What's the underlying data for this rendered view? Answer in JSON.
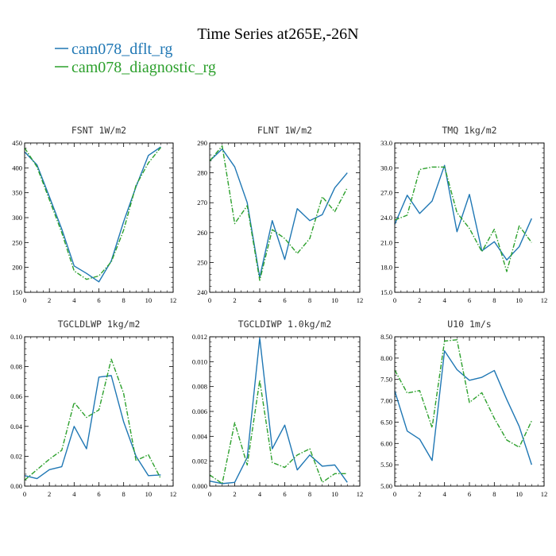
{
  "figure": {
    "title": "Time Series at265E,-26N",
    "legend": [
      {
        "name": "cam078_dflt_rg",
        "color": "#1f77b4",
        "dash": "solid"
      },
      {
        "name": "cam078_diagnostic_rg",
        "color": "#2ca02c",
        "dash": "dashdot"
      }
    ]
  },
  "chart_data": [
    {
      "type": "line",
      "title": "FSNT  1W/m2",
      "x": [
        0,
        1,
        2,
        3,
        4,
        5,
        6,
        7,
        8,
        9,
        10,
        11
      ],
      "xlim": [
        0,
        12
      ],
      "xticks": [
        0,
        2,
        4,
        6,
        8,
        10,
        12
      ],
      "ylim": [
        150,
        450
      ],
      "yticks": [
        150,
        200,
        250,
        300,
        350,
        400,
        450
      ],
      "yfmt": 0,
      "series": [
        {
          "name": "cam078_dflt_rg",
          "values": [
            432,
            406,
            342,
            277,
            203,
            188,
            171,
            213,
            292,
            362,
            425,
            442
          ]
        },
        {
          "name": "cam078_diagnostic_rg",
          "values": [
            440,
            402,
            336,
            270,
            193,
            176,
            183,
            211,
            275,
            365,
            410,
            441
          ]
        }
      ]
    },
    {
      "type": "line",
      "title": "FLNT  1W/m2",
      "x": [
        0,
        1,
        2,
        3,
        4,
        5,
        6,
        7,
        8,
        9,
        10,
        11
      ],
      "xlim": [
        0,
        12
      ],
      "xticks": [
        0,
        2,
        4,
        6,
        8,
        10,
        12
      ],
      "ylim": [
        240,
        290
      ],
      "yticks": [
        240,
        250,
        260,
        270,
        280,
        290
      ],
      "yfmt": 0,
      "series": [
        {
          "name": "cam078_dflt_rg",
          "values": [
            284,
            288,
            282,
            270,
            245,
            264,
            251,
            268,
            264,
            266,
            275,
            280
          ]
        },
        {
          "name": "cam078_diagnostic_rg",
          "values": [
            284,
            289,
            263,
            269,
            244,
            261,
            258,
            253,
            258,
            272,
            267,
            275
          ]
        }
      ]
    },
    {
      "type": "line",
      "title": "TMQ  1kg/m2",
      "x": [
        0,
        1,
        2,
        3,
        4,
        5,
        6,
        7,
        8,
        9,
        10,
        11
      ],
      "xlim": [
        0,
        12
      ],
      "xticks": [
        0,
        2,
        4,
        6,
        8,
        10,
        12
      ],
      "ylim": [
        15.0,
        33.0
      ],
      "yticks": [
        15.0,
        18.0,
        21.0,
        24.0,
        27.0,
        30.0,
        33.0
      ],
      "yfmt": 1,
      "series": [
        {
          "name": "cam078_dflt_rg",
          "values": [
            23.2,
            26.7,
            24.5,
            26.0,
            30.3,
            22.3,
            26.8,
            20.0,
            21.1,
            18.9,
            20.5,
            23.9
          ]
        },
        {
          "name": "cam078_diagnostic_rg",
          "values": [
            23.7,
            24.3,
            29.8,
            30.1,
            30.1,
            24.6,
            22.7,
            19.9,
            22.6,
            17.5,
            23.0,
            21.0
          ]
        }
      ]
    },
    {
      "type": "line",
      "title": "TGCLDLWP  1kg/m2",
      "x": [
        0,
        1,
        2,
        3,
        4,
        5,
        6,
        7,
        8,
        9,
        10,
        11
      ],
      "xlim": [
        0,
        12
      ],
      "xticks": [
        0,
        2,
        4,
        6,
        8,
        10,
        12
      ],
      "ylim": [
        0.0,
        0.1
      ],
      "yticks": [
        0.0,
        0.02,
        0.04,
        0.06,
        0.08,
        0.1
      ],
      "yfmt": 2,
      "series": [
        {
          "name": "cam078_dflt_rg",
          "values": [
            0.007,
            0.005,
            0.011,
            0.013,
            0.04,
            0.025,
            0.073,
            0.074,
            0.043,
            0.02,
            0.007,
            0.0075
          ]
        },
        {
          "name": "cam078_diagnostic_rg",
          "values": [
            0.004,
            0.011,
            0.018,
            0.024,
            0.056,
            0.046,
            0.051,
            0.085,
            0.062,
            0.017,
            0.021,
            0.005
          ]
        }
      ]
    },
    {
      "type": "line",
      "title": "TGCLDIWP  1.0kg/m2",
      "x": [
        0,
        1,
        2,
        3,
        4,
        5,
        6,
        7,
        8,
        9,
        10,
        11
      ],
      "xlim": [
        0,
        12
      ],
      "xticks": [
        0,
        2,
        4,
        6,
        8,
        10,
        12
      ],
      "ylim": [
        0.0,
        0.012
      ],
      "yticks": [
        0.0,
        0.002,
        0.004,
        0.006,
        0.008,
        0.01,
        0.012
      ],
      "yfmt": 3,
      "series": [
        {
          "name": "cam078_dflt_rg",
          "values": [
            0.0004,
            0.0002,
            0.0003,
            0.0023,
            0.0119,
            0.003,
            0.0049,
            0.0013,
            0.0025,
            0.0016,
            0.0017,
            0.0003
          ]
        },
        {
          "name": "cam078_diagnostic_rg",
          "values": [
            0.0009,
            0.0002,
            0.0051,
            0.0017,
            0.0085,
            0.0019,
            0.0015,
            0.0025,
            0.003,
            0.0003,
            0.001,
            0.001
          ]
        }
      ]
    },
    {
      "type": "line",
      "title": "U10  1m/s",
      "x": [
        0,
        1,
        2,
        3,
        4,
        5,
        6,
        7,
        8,
        9,
        10,
        11
      ],
      "xlim": [
        0,
        12
      ],
      "xticks": [
        0,
        2,
        4,
        6,
        8,
        10,
        12
      ],
      "ylim": [
        5.0,
        8.5
      ],
      "yticks": [
        5.0,
        5.5,
        6.0,
        6.5,
        7.0,
        7.5,
        8.0,
        8.5
      ],
      "yfmt": 2,
      "series": [
        {
          "name": "cam078_dflt_rg",
          "values": [
            7.23,
            6.29,
            6.1,
            5.6,
            8.17,
            7.73,
            7.48,
            7.55,
            7.71,
            7.03,
            6.4,
            5.5
          ]
        },
        {
          "name": "cam078_diagnostic_rg",
          "values": [
            7.72,
            7.18,
            7.24,
            6.37,
            8.4,
            8.43,
            6.96,
            7.19,
            6.59,
            6.08,
            5.91,
            6.53
          ]
        }
      ]
    }
  ]
}
